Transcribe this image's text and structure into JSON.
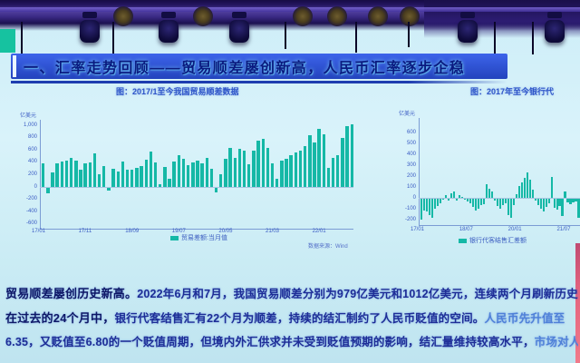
{
  "title": {
    "text": "一、汇率走势回顾——贸易顺差屡创新高，人民币汇率逐步企稳"
  },
  "colors": {
    "bar_teal": "#15b8a6",
    "title_blue": "#2343bd",
    "text_navy": "#1e2d96",
    "screen_cyan": "#d2eef7",
    "stage_purple": "#3a2a85",
    "edge_pink": "#e4647f"
  },
  "icons": {
    "stage_light": "moving-head-light-icon",
    "speaker": "speaker-grille-icon"
  },
  "body": {
    "line1_head": "贸易顺差屡创历史新高。",
    "line1_rest": "2022年6月和7月，我国贸易顺差分别为979亿美元和1012亿美元，连续两个月刷新历史新高。",
    "line2_head": "在过去的24个月中，",
    "line2_rest": "银行代客结售汇有22个月为顺差，持续的结汇制约了人民币贬值的空间。",
    "line2_tail": "人民币先升值至",
    "line3_rest": "6.35，又贬值至6.80的一个贬值周期，但境内外汇供求并未受到贬值预期的影响，结汇量维持较高水平，",
    "line3_tail": "市场对人民币"
  },
  "chart_data": [
    {
      "type": "bar",
      "title": "图：2017/1至今我国贸易顺差数据",
      "unit": "亿美元",
      "ylabel": "贸易差额(亿美元)",
      "ylim": [
        -600,
        1050
      ],
      "y_ticks": [
        1000,
        800,
        600,
        400,
        200,
        0,
        -200,
        -400,
        -600
      ],
      "x_ticks": [
        "17/01",
        "17/11",
        "18/09",
        "19/07",
        "20/05",
        "21/03",
        "22/01"
      ],
      "legend_position": "bottom",
      "grid": false,
      "color": "#15b8a6",
      "source": "数据来源：Wind",
      "series": [
        {
          "name": "贸易差额:当月值",
          "values": [
            381,
            -91,
            239,
            380,
            408,
            427,
            467,
            420,
            286,
            382,
            402,
            546,
            203,
            337,
            -50,
            288,
            249,
            416,
            280,
            279,
            316,
            340,
            447,
            570,
            391,
            41,
            326,
            138,
            417,
            510,
            450,
            348,
            396,
            428,
            377,
            468,
            291,
            -71,
            199,
            453,
            629,
            464,
            623,
            589,
            370,
            584,
            754,
            781,
            632,
            378,
            138,
            429,
            455,
            515,
            566,
            583,
            668,
            845,
            717,
            944,
            851,
            304,
            473,
            511,
            787,
            979,
            1012
          ]
        }
      ]
    },
    {
      "type": "bar",
      "title": "图：2017年至今银行代",
      "unit": "亿美元",
      "ylabel": "银行代客结售汇差额(亿美元)",
      "ylim": [
        -220,
        650
      ],
      "y_ticks": [
        600,
        500,
        400,
        300,
        200,
        100,
        0,
        -100,
        -200
      ],
      "x_ticks": [
        "17/01",
        "18/07",
        "20/01",
        "21/07"
      ],
      "legend_position": "bottom",
      "grid": false,
      "color": "#15b8a6",
      "series": [
        {
          "name": "银行代客结售汇差额",
          "values": [
            -192,
            -105,
            -116,
            -149,
            -171,
            -93,
            -64,
            -38,
            -3,
            24,
            -18,
            45,
            60,
            -15,
            28,
            9,
            -12,
            -25,
            -38,
            -75,
            -110,
            -94,
            -62,
            -48,
            121,
            84,
            58,
            -20,
            -63,
            -89,
            -61,
            -41,
            -152,
            -171,
            -55,
            37,
            108,
            142,
            185,
            230,
            163,
            71,
            -18,
            -62,
            -88,
            -120,
            -72,
            -45,
            188,
            -82,
            -97,
            -63,
            -162,
            58,
            -36,
            -47,
            -32,
            -26,
            -172,
            -42,
            -31,
            -23,
            -37,
            -28,
            -46,
            63,
            128
          ]
        }
      ]
    }
  ]
}
